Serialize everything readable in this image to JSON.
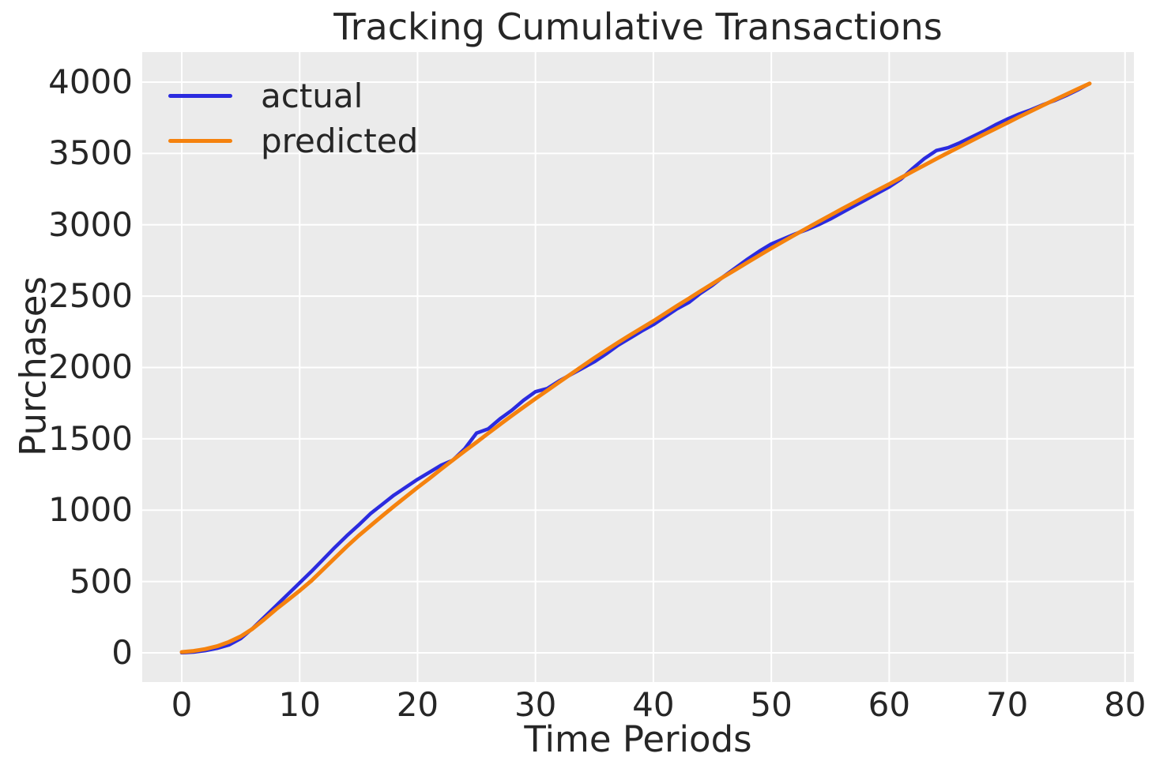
{
  "chart_data": {
    "type": "line",
    "title": "Tracking Cumulative Transactions",
    "xlabel": "Time Periods",
    "ylabel": "Purchases",
    "grid": true,
    "legend_position": "upper left",
    "plot_bg_color": "#ebebeb",
    "grid_color": "#ffffff",
    "text_color": "#262626",
    "xlim": [
      -3.35,
      80.75
    ],
    "ylim": [
      -205,
      4210
    ],
    "x_ticks": [
      0,
      10,
      20,
      30,
      40,
      50,
      60,
      70,
      80
    ],
    "y_ticks": [
      0,
      500,
      1000,
      1500,
      2000,
      2500,
      3000,
      3500,
      4000
    ],
    "x": [
      0,
      1,
      2,
      3,
      4,
      5,
      6,
      7,
      8,
      9,
      10,
      11,
      12,
      13,
      14,
      15,
      16,
      17,
      18,
      19,
      20,
      21,
      22,
      23,
      24,
      25,
      26,
      27,
      28,
      29,
      30,
      31,
      32,
      33,
      34,
      35,
      36,
      37,
      38,
      39,
      40,
      41,
      42,
      43,
      44,
      45,
      46,
      47,
      48,
      49,
      50,
      51,
      52,
      53,
      54,
      55,
      56,
      57,
      58,
      59,
      60,
      61,
      62,
      63,
      64,
      65,
      66,
      67,
      68,
      69,
      70,
      71,
      72,
      73,
      74,
      75,
      76,
      77
    ],
    "series": [
      {
        "name": "actual",
        "color": "#2b2bdf",
        "line_width": 4.5,
        "values": [
          0,
          5,
          15,
          32,
          55,
          100,
          170,
          250,
          330,
          410,
          490,
          570,
          655,
          740,
          820,
          895,
          975,
          1040,
          1105,
          1160,
          1215,
          1265,
          1315,
          1350,
          1430,
          1540,
          1570,
          1640,
          1700,
          1770,
          1830,
          1852,
          1905,
          1950,
          1995,
          2040,
          2095,
          2155,
          2205,
          2255,
          2300,
          2355,
          2410,
          2455,
          2520,
          2575,
          2640,
          2700,
          2760,
          2815,
          2865,
          2900,
          2935,
          2965,
          3000,
          3040,
          3085,
          3130,
          3175,
          3220,
          3265,
          3320,
          3395,
          3465,
          3520,
          3540,
          3575,
          3615,
          3655,
          3700,
          3740,
          3775,
          3805,
          3840,
          3870,
          3905,
          3945,
          3990
        ]
      },
      {
        "name": "predicted",
        "color": "#f5820e",
        "line_width": 5,
        "values": [
          5,
          13,
          26,
          46,
          76,
          115,
          168,
          235,
          305,
          370,
          435,
          505,
          585,
          665,
          745,
          820,
          890,
          959,
          1027,
          1093,
          1158,
          1222,
          1287,
          1351,
          1414,
          1476,
          1539,
          1601,
          1662,
          1722,
          1781,
          1838,
          1896,
          1953,
          2010,
          2067,
          2121,
          2174,
          2226,
          2276,
          2325,
          2378,
          2431,
          2483,
          2535,
          2586,
          2637,
          2687,
          2737,
          2786,
          2835,
          2882,
          2929,
          2975,
          3021,
          3066,
          3111,
          3155,
          3199,
          3242,
          3285,
          3330,
          3374,
          3418,
          3462,
          3505,
          3547,
          3590,
          3632,
          3673,
          3714,
          3755,
          3795,
          3835,
          3875,
          3913,
          3952,
          3990
        ]
      }
    ]
  }
}
